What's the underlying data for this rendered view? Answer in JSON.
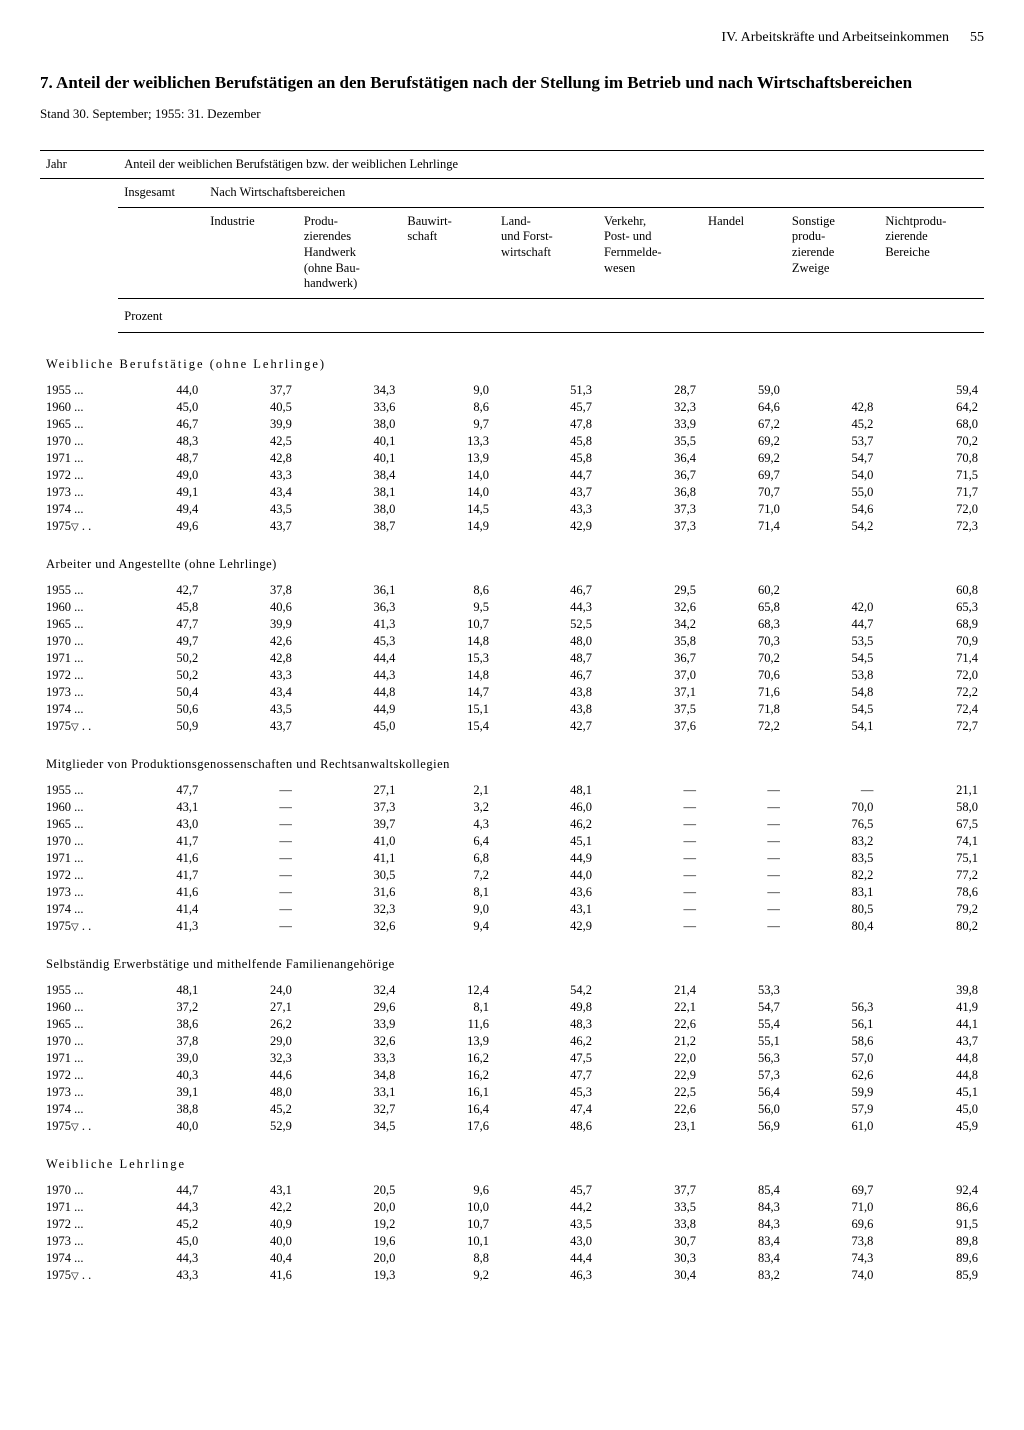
{
  "header": {
    "section": "IV. Arbeitskräfte und Arbeitseinkommen",
    "page": "55"
  },
  "title": "7. Anteil der weiblichen Berufstätigen an den Berufstätigen nach der Stellung im Betrieb und nach Wirtschaftsbereichen",
  "standline": "Stand 30. September; 1955: 31. Dezember",
  "table": {
    "col_year": "Jahr",
    "col_main": "Anteil der weiblichen Berufstätigen bzw. der weiblichen Lehrlinge",
    "col_insgesamt": "Insgesamt",
    "col_nach": "Nach Wirtschaftsbereichen",
    "columns": [
      "Industrie",
      "Produ-\nzierendes\nHandwerk\n(ohne Bau-\nhandwerk)",
      "Bauwirt-\nschaft",
      "Land-\nund Forst-\nwirtschaft",
      "Verkehr,\nPost- und\nFernmelde-\nwesen",
      "Handel",
      "Sonstige\nprodu-\nzierende\nZweige",
      "Nichtprodu-\nzierende\nBereiche"
    ],
    "prozent": "Prozent",
    "sections": [
      {
        "title": "Weibliche Berufstätige (ohne Lehrlinge)",
        "spaced": true,
        "top_right": "59,4",
        "rows": [
          {
            "year": "1955",
            "tri": false,
            "v": [
              "44,0",
              "37,7",
              "34,3",
              "9,0",
              "51,3",
              "28,7",
              "59,0",
              "",
              ""
            ]
          },
          {
            "year": "1960",
            "tri": false,
            "v": [
              "45,0",
              "40,5",
              "33,6",
              "8,6",
              "45,7",
              "32,3",
              "64,6",
              "42,8",
              "64,2"
            ]
          },
          {
            "year": "1965",
            "tri": false,
            "v": [
              "46,7",
              "39,9",
              "38,0",
              "9,7",
              "47,8",
              "33,9",
              "67,2",
              "45,2",
              "68,0"
            ]
          },
          {
            "year": "1970",
            "tri": false,
            "v": [
              "48,3",
              "42,5",
              "40,1",
              "13,3",
              "45,8",
              "35,5",
              "69,2",
              "53,7",
              "70,2"
            ]
          },
          {
            "year": "1971",
            "tri": false,
            "v": [
              "48,7",
              "42,8",
              "40,1",
              "13,9",
              "45,8",
              "36,4",
              "69,2",
              "54,7",
              "70,8"
            ]
          },
          {
            "year": "1972",
            "tri": false,
            "v": [
              "49,0",
              "43,3",
              "38,4",
              "14,0",
              "44,7",
              "36,7",
              "69,7",
              "54,0",
              "71,5"
            ]
          },
          {
            "year": "1973",
            "tri": false,
            "v": [
              "49,1",
              "43,4",
              "38,1",
              "14,0",
              "43,7",
              "36,8",
              "70,7",
              "55,0",
              "71,7"
            ]
          },
          {
            "year": "1974",
            "tri": false,
            "v": [
              "49,4",
              "43,5",
              "38,0",
              "14,5",
              "43,3",
              "37,3",
              "71,0",
              "54,6",
              "72,0"
            ]
          },
          {
            "year": "1975",
            "tri": true,
            "v": [
              "49,6",
              "43,7",
              "38,7",
              "14,9",
              "42,9",
              "37,3",
              "71,4",
              "54,2",
              "72,3"
            ]
          }
        ]
      },
      {
        "title": "Arbeiter und Angestellte (ohne Lehrlinge)",
        "spaced": false,
        "top_right": "60,8",
        "rows": [
          {
            "year": "1955",
            "tri": false,
            "v": [
              "42,7",
              "37,8",
              "36,1",
              "8,6",
              "46,7",
              "29,5",
              "60,2",
              "",
              ""
            ]
          },
          {
            "year": "1960",
            "tri": false,
            "v": [
              "45,8",
              "40,6",
              "36,3",
              "9,5",
              "44,3",
              "32,6",
              "65,8",
              "42,0",
              "65,3"
            ]
          },
          {
            "year": "1965",
            "tri": false,
            "v": [
              "47,7",
              "39,9",
              "41,3",
              "10,7",
              "52,5",
              "34,2",
              "68,3",
              "44,7",
              "68,9"
            ]
          },
          {
            "year": "1970",
            "tri": false,
            "v": [
              "49,7",
              "42,6",
              "45,3",
              "14,8",
              "48,0",
              "35,8",
              "70,3",
              "53,5",
              "70,9"
            ]
          },
          {
            "year": "1971",
            "tri": false,
            "v": [
              "50,2",
              "42,8",
              "44,4",
              "15,3",
              "48,7",
              "36,7",
              "70,2",
              "54,5",
              "71,4"
            ]
          },
          {
            "year": "1972",
            "tri": false,
            "v": [
              "50,2",
              "43,3",
              "44,3",
              "14,8",
              "46,7",
              "37,0",
              "70,6",
              "53,8",
              "72,0"
            ]
          },
          {
            "year": "1973",
            "tri": false,
            "v": [
              "50,4",
              "43,4",
              "44,8",
              "14,7",
              "43,8",
              "37,1",
              "71,6",
              "54,8",
              "72,2"
            ]
          },
          {
            "year": "1974",
            "tri": false,
            "v": [
              "50,6",
              "43,5",
              "44,9",
              "15,1",
              "43,8",
              "37,5",
              "71,8",
              "54,5",
              "72,4"
            ]
          },
          {
            "year": "1975",
            "tri": true,
            "v": [
              "50,9",
              "43,7",
              "45,0",
              "15,4",
              "42,7",
              "37,6",
              "72,2",
              "54,1",
              "72,7"
            ]
          }
        ]
      },
      {
        "title": "Mitglieder von Produktionsgenossenschaften und Rechtsanwaltskollegien",
        "spaced": false,
        "top_right": "",
        "rows": [
          {
            "year": "1955",
            "tri": false,
            "v": [
              "47,7",
              "—",
              "27,1",
              "2,1",
              "48,1",
              "—",
              "—",
              "—",
              "21,1"
            ]
          },
          {
            "year": "1960",
            "tri": false,
            "v": [
              "43,1",
              "—",
              "37,3",
              "3,2",
              "46,0",
              "—",
              "—",
              "70,0",
              "58,0"
            ]
          },
          {
            "year": "1965",
            "tri": false,
            "v": [
              "43,0",
              "—",
              "39,7",
              "4,3",
              "46,2",
              "—",
              "—",
              "76,5",
              "67,5"
            ]
          },
          {
            "year": "1970",
            "tri": false,
            "v": [
              "41,7",
              "—",
              "41,0",
              "6,4",
              "45,1",
              "—",
              "—",
              "83,2",
              "74,1"
            ]
          },
          {
            "year": "1971",
            "tri": false,
            "v": [
              "41,6",
              "—",
              "41,1",
              "6,8",
              "44,9",
              "—",
              "—",
              "83,5",
              "75,1"
            ]
          },
          {
            "year": "1972",
            "tri": false,
            "v": [
              "41,7",
              "—",
              "30,5",
              "7,2",
              "44,0",
              "—",
              "—",
              "82,2",
              "77,2"
            ]
          },
          {
            "year": "1973",
            "tri": false,
            "v": [
              "41,6",
              "—",
              "31,6",
              "8,1",
              "43,6",
              "—",
              "—",
              "83,1",
              "78,6"
            ]
          },
          {
            "year": "1974",
            "tri": false,
            "v": [
              "41,4",
              "—",
              "32,3",
              "9,0",
              "43,1",
              "—",
              "—",
              "80,5",
              "79,2"
            ]
          },
          {
            "year": "1975",
            "tri": true,
            "v": [
              "41,3",
              "—",
              "32,6",
              "9,4",
              "42,9",
              "—",
              "—",
              "80,4",
              "80,2"
            ]
          }
        ]
      },
      {
        "title": "Selbständig Erwerbstätige und mithelfende Familienangehörige",
        "spaced": false,
        "top_right": "39,8",
        "rows": [
          {
            "year": "1955",
            "tri": false,
            "v": [
              "48,1",
              "24,0",
              "32,4",
              "12,4",
              "54,2",
              "21,4",
              "53,3",
              "",
              ""
            ]
          },
          {
            "year": "1960",
            "tri": false,
            "v": [
              "37,2",
              "27,1",
              "29,6",
              "8,1",
              "49,8",
              "22,1",
              "54,7",
              "56,3",
              "41,9"
            ]
          },
          {
            "year": "1965",
            "tri": false,
            "v": [
              "38,6",
              "26,2",
              "33,9",
              "11,6",
              "48,3",
              "22,6",
              "55,4",
              "56,1",
              "44,1"
            ]
          },
          {
            "year": "1970",
            "tri": false,
            "v": [
              "37,8",
              "29,0",
              "32,6",
              "13,9",
              "46,2",
              "21,2",
              "55,1",
              "58,6",
              "43,7"
            ]
          },
          {
            "year": "1971",
            "tri": false,
            "v": [
              "39,0",
              "32,3",
              "33,3",
              "16,2",
              "47,5",
              "22,0",
              "56,3",
              "57,0",
              "44,8"
            ]
          },
          {
            "year": "1972",
            "tri": false,
            "v": [
              "40,3",
              "44,6",
              "34,8",
              "16,2",
              "47,7",
              "22,9",
              "57,3",
              "62,6",
              "44,8"
            ]
          },
          {
            "year": "1973",
            "tri": false,
            "v": [
              "39,1",
              "48,0",
              "33,1",
              "16,1",
              "45,3",
              "22,5",
              "56,4",
              "59,9",
              "45,1"
            ]
          },
          {
            "year": "1974",
            "tri": false,
            "v": [
              "38,8",
              "45,2",
              "32,7",
              "16,4",
              "47,4",
              "22,6",
              "56,0",
              "57,9",
              "45,0"
            ]
          },
          {
            "year": "1975",
            "tri": true,
            "v": [
              "40,0",
              "52,9",
              "34,5",
              "17,6",
              "48,6",
              "23,1",
              "56,9",
              "61,0",
              "45,9"
            ]
          }
        ]
      },
      {
        "title": "Weibliche Lehrlinge",
        "spaced": true,
        "top_right": "",
        "rows": [
          {
            "year": "1970",
            "tri": false,
            "v": [
              "44,7",
              "43,1",
              "20,5",
              "9,6",
              "45,7",
              "37,7",
              "85,4",
              "69,7",
              "92,4"
            ]
          },
          {
            "year": "1971",
            "tri": false,
            "v": [
              "44,3",
              "42,2",
              "20,0",
              "10,0",
              "44,2",
              "33,5",
              "84,3",
              "71,0",
              "86,6"
            ]
          },
          {
            "year": "1972",
            "tri": false,
            "v": [
              "45,2",
              "40,9",
              "19,2",
              "10,7",
              "43,5",
              "33,8",
              "84,3",
              "69,6",
              "91,5"
            ]
          },
          {
            "year": "1973",
            "tri": false,
            "v": [
              "45,0",
              "40,0",
              "19,6",
              "10,1",
              "43,0",
              "30,7",
              "83,4",
              "73,8",
              "89,8"
            ]
          },
          {
            "year": "1974",
            "tri": false,
            "v": [
              "44,3",
              "40,4",
              "20,0",
              "8,8",
              "44,4",
              "30,3",
              "83,4",
              "74,3",
              "89,6"
            ]
          },
          {
            "year": "1975",
            "tri": true,
            "v": [
              "43,3",
              "41,6",
              "19,3",
              "9,2",
              "46,3",
              "30,4",
              "83,2",
              "74,0",
              "85,9"
            ]
          }
        ]
      }
    ]
  }
}
